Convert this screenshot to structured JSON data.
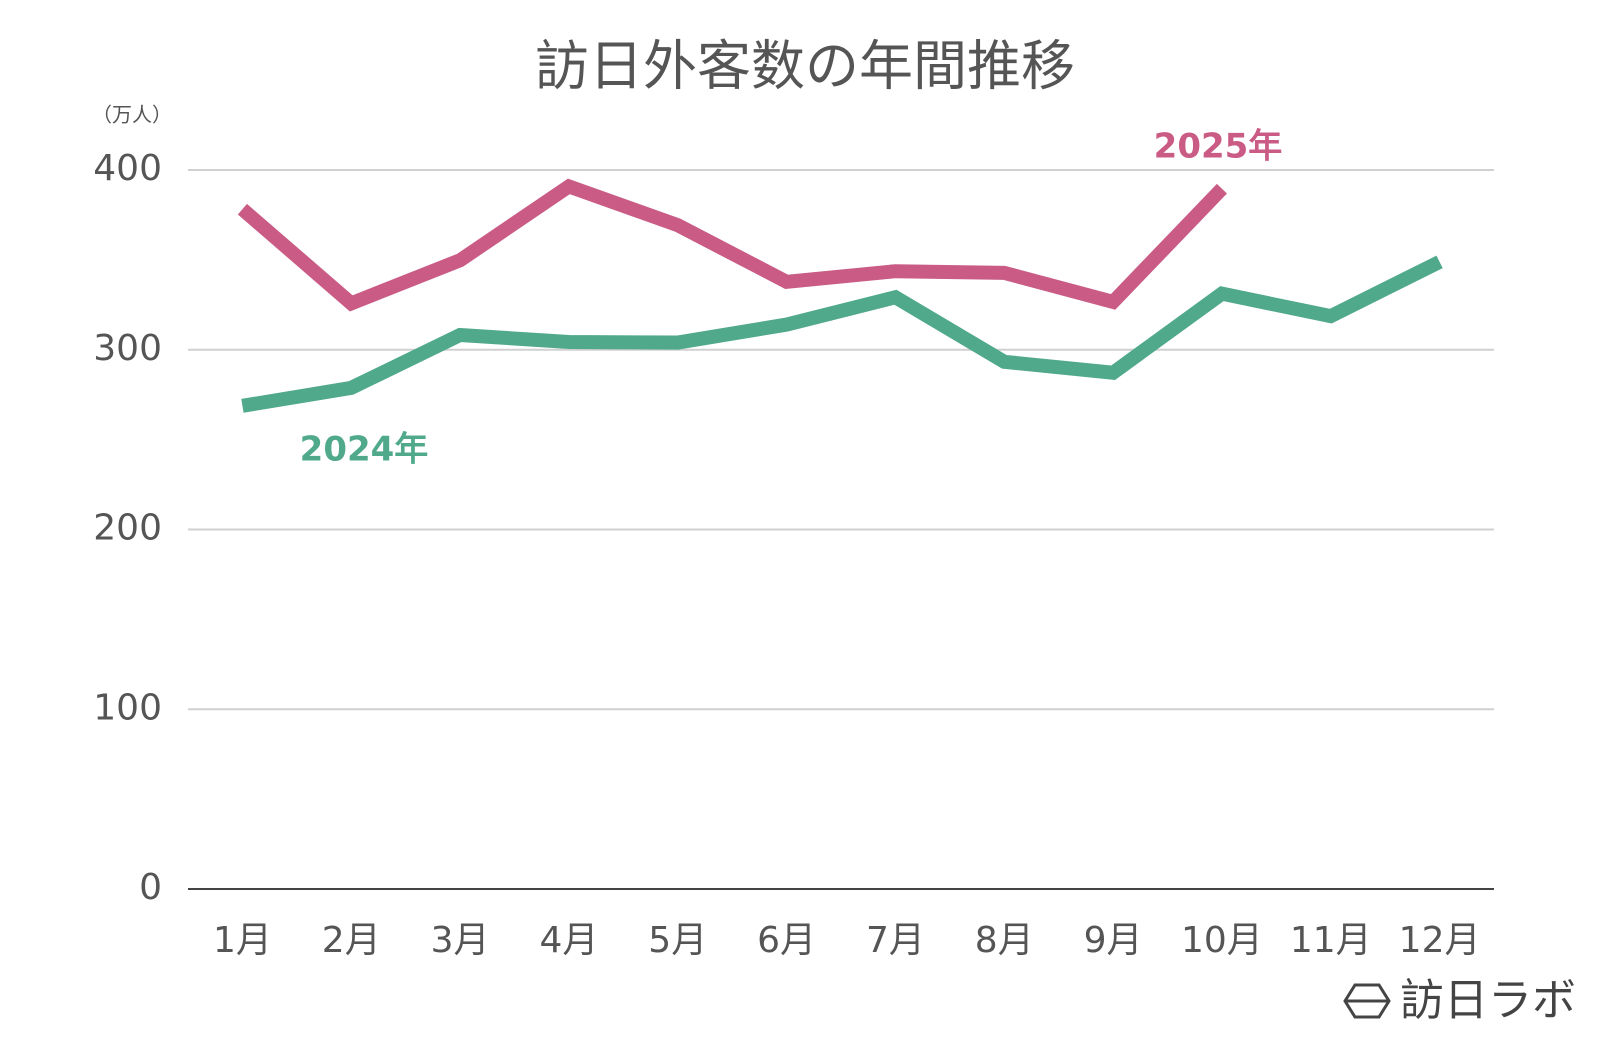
{
  "chart_data": {
    "type": "line",
    "title": "訪日外客数の年間推移",
    "y_unit": "（万人）",
    "categories": [
      "1月",
      "2月",
      "3月",
      "4月",
      "5月",
      "6月",
      "7月",
      "8月",
      "9月",
      "10月",
      "11月",
      "12月"
    ],
    "series": [
      {
        "name": "2024年",
        "color": "#50a98a",
        "values": [
          268.8,
          278.8,
          308.2,
          304.3,
          304.0,
          314.0,
          329.2,
          293.3,
          287.2,
          331.2,
          318.7,
          348.9
        ]
      },
      {
        "name": "2025年",
        "color": "#c95b84",
        "values": [
          378.2,
          325.8,
          349.8,
          390.9,
          369.3,
          337.8,
          343.7,
          342.8,
          326.6,
          389.6,
          null,
          null
        ]
      }
    ],
    "ylim": [
      0,
      400
    ],
    "yticks": [
      0,
      100,
      200,
      300,
      400
    ],
    "grid": true,
    "logo": "訪日ラボ"
  }
}
